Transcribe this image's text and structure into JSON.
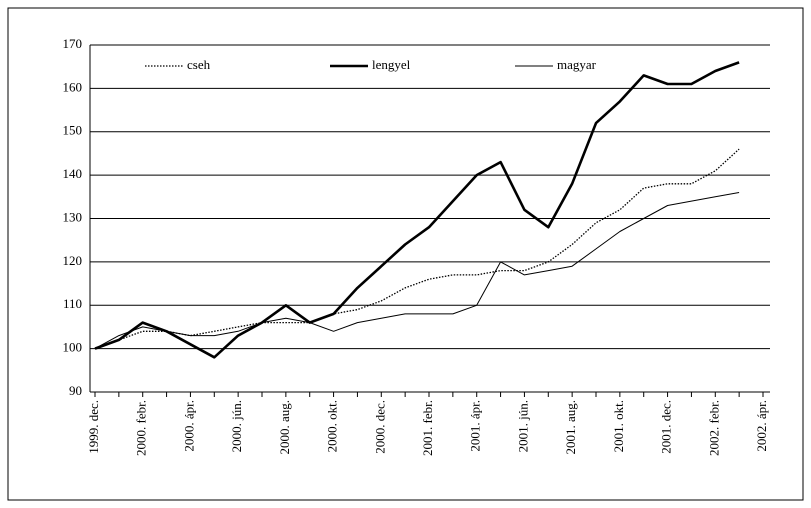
{
  "chart_data": {
    "type": "line",
    "categories": [
      "1999. dec.",
      null,
      "2000. febr.",
      null,
      "2000. ápr.",
      null,
      "2000. jún.",
      null,
      "2000. aug.",
      null,
      "2000. okt.",
      null,
      "2000. dec.",
      null,
      "2001. febr.",
      null,
      "2001. ápr.",
      null,
      "2001. jún.",
      null,
      "2001. aug.",
      null,
      "2001. okt.",
      null,
      "2001. dec.",
      null,
      "2002. febr.",
      null,
      "2002. ápr."
    ],
    "series": [
      {
        "name": "cseh",
        "color": "#000000",
        "style": "dotted",
        "values": [
          100,
          102,
          104,
          104,
          103,
          104,
          105,
          106,
          106,
          106,
          108,
          109,
          111,
          114,
          116,
          117,
          117,
          118,
          118,
          120,
          124,
          129,
          132,
          137,
          138,
          138,
          141,
          146,
          null
        ]
      },
      {
        "name": "lengyel",
        "color": "#000000",
        "style": "bold",
        "values": [
          100,
          102,
          106,
          104,
          101,
          98,
          103,
          106,
          110,
          106,
          108,
          114,
          119,
          124,
          128,
          134,
          140,
          143,
          132,
          128,
          138,
          152,
          157,
          163,
          161,
          161,
          164,
          166,
          null
        ]
      },
      {
        "name": "magyar",
        "color": "#000000",
        "style": "thin",
        "values": [
          100,
          103,
          105,
          104,
          103,
          103,
          104,
          106,
          107,
          106,
          104,
          106,
          107,
          108,
          108,
          108,
          110,
          120,
          117,
          118,
          119,
          123,
          127,
          130,
          133,
          134,
          135,
          136,
          null
        ]
      }
    ],
    "ylim": [
      90,
      170
    ],
    "yticks": [
      90,
      100,
      110,
      120,
      130,
      140,
      150,
      160,
      170
    ],
    "grid": true,
    "legend": "top"
  }
}
